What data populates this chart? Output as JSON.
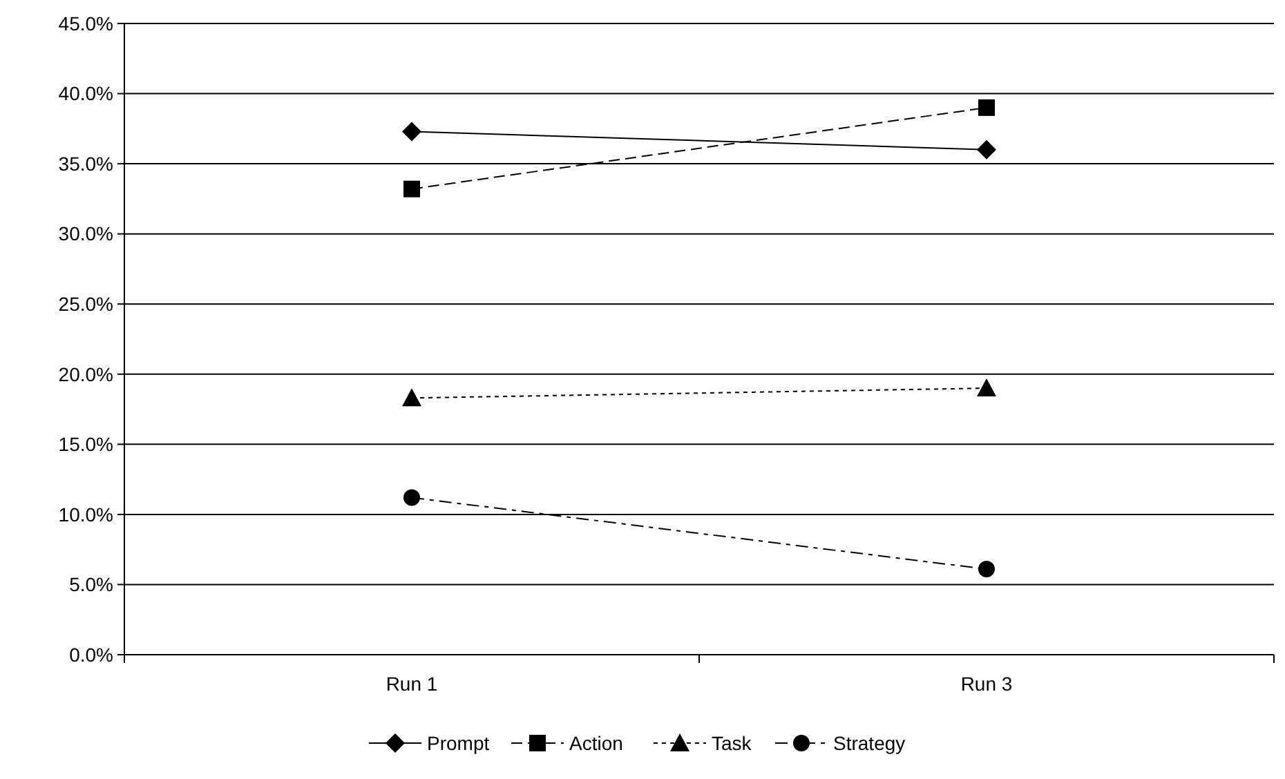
{
  "chart_data": {
    "type": "line",
    "categories": [
      "Run 1",
      "Run 3"
    ],
    "series": [
      {
        "name": "Prompt",
        "color": "#000000",
        "values": [
          37.3,
          36.0
        ],
        "marker": "diamond",
        "line_style": "solid"
      },
      {
        "name": "Action",
        "color": "#000000",
        "values": [
          33.2,
          39.0
        ],
        "marker": "square",
        "line_style": "dashed"
      },
      {
        "name": "Task",
        "color": "#000000",
        "values": [
          18.3,
          19.0
        ],
        "marker": "triangle",
        "line_style": "dotted"
      },
      {
        "name": "Strategy",
        "color": "#000000",
        "values": [
          11.2,
          6.1
        ],
        "marker": "circle",
        "line_style": "dashdot"
      }
    ],
    "ylim": [
      0,
      45
    ],
    "yticks": [
      {
        "value": 0,
        "label": "0.0%"
      },
      {
        "value": 5,
        "label": "5.0%"
      },
      {
        "value": 10,
        "label": "10.0%"
      },
      {
        "value": 15,
        "label": "15.0%"
      },
      {
        "value": 20,
        "label": "20.0%"
      },
      {
        "value": 25,
        "label": "25.0%"
      },
      {
        "value": 30,
        "label": "30.0%"
      },
      {
        "value": 35,
        "label": "35.0%"
      },
      {
        "value": 40,
        "label": "40.0%"
      },
      {
        "value": 45,
        "label": "45.0%"
      }
    ],
    "grid": "y",
    "legend": "bottom"
  }
}
